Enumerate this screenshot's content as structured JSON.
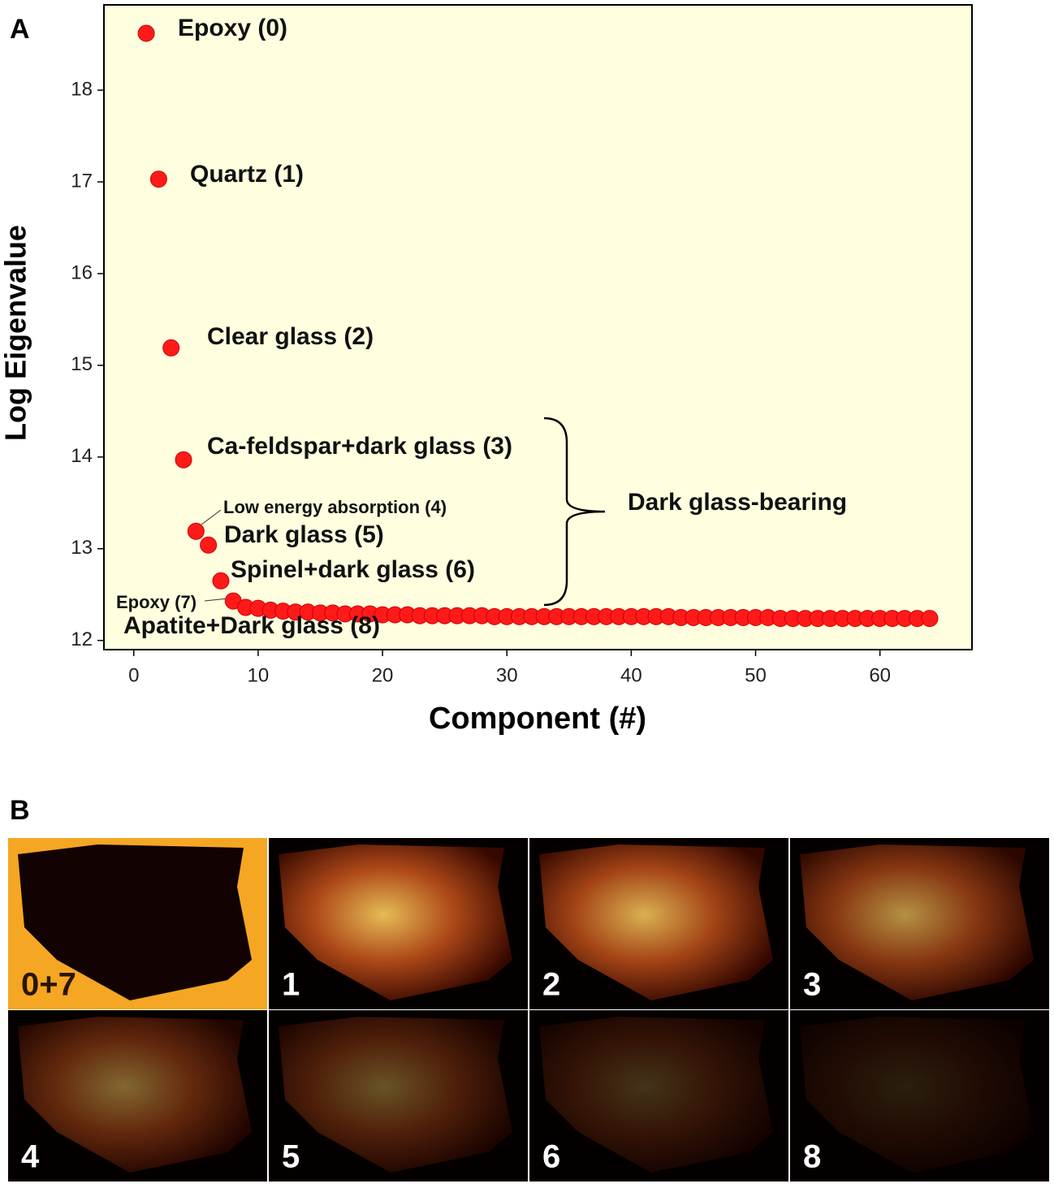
{
  "chart_data": {
    "type": "scatter",
    "xlabel": "Component (#)",
    "ylabel": "Log Eigenvalue",
    "x": [
      1,
      2,
      3,
      4,
      5,
      6,
      7,
      8,
      9,
      10,
      11,
      12,
      13,
      14,
      15,
      16,
      17,
      18,
      19,
      20,
      21,
      22,
      23,
      24,
      25,
      26,
      27,
      28,
      29,
      30,
      31,
      32,
      33,
      34,
      35,
      36,
      37,
      38,
      39,
      40,
      41,
      42,
      43,
      44,
      45,
      46,
      47,
      48,
      49,
      50,
      51,
      52,
      53,
      54,
      55,
      56,
      57,
      58,
      59,
      60,
      61,
      62,
      63,
      64
    ],
    "values": [
      18.62,
      17.03,
      15.19,
      13.97,
      13.19,
      13.04,
      12.65,
      12.43,
      12.36,
      12.35,
      12.33,
      12.32,
      12.31,
      12.31,
      12.3,
      12.3,
      12.29,
      12.29,
      12.29,
      12.28,
      12.28,
      12.28,
      12.27,
      12.27,
      12.27,
      12.27,
      12.27,
      12.27,
      12.26,
      12.26,
      12.26,
      12.26,
      12.26,
      12.26,
      12.26,
      12.26,
      12.26,
      12.26,
      12.26,
      12.26,
      12.26,
      12.26,
      12.26,
      12.25,
      12.25,
      12.25,
      12.25,
      12.25,
      12.25,
      12.25,
      12.25,
      12.24,
      12.24,
      12.24,
      12.24,
      12.24,
      12.24,
      12.24,
      12.24,
      12.24,
      12.24,
      12.24,
      12.24,
      12.24
    ],
    "color": "#ff1a1a",
    "xlim": [
      -2.4,
      67.4
    ],
    "ylim": [
      11.9,
      18.93
    ],
    "xticks": [
      0,
      10,
      20,
      30,
      40,
      50,
      60
    ],
    "yticks": [
      12,
      13,
      14,
      15,
      16,
      17,
      18
    ],
    "annotations": [
      "Epoxy (0)",
      "Quartz (1)",
      "Clear glass (2)",
      "Ca-feldspar+dark glass (3)",
      "Low energy absorption (4)",
      "Dark glass (5)",
      "Spinel+dark glass (6)",
      "Epoxy (7)",
      "Apatite+Dark glass (8)",
      "Dark glass-bearing"
    ]
  },
  "panel_letters": [
    "A",
    "B"
  ],
  "panel_labels": [
    "0+7",
    "1",
    "2",
    "3",
    "4",
    "5",
    "6",
    "8"
  ]
}
